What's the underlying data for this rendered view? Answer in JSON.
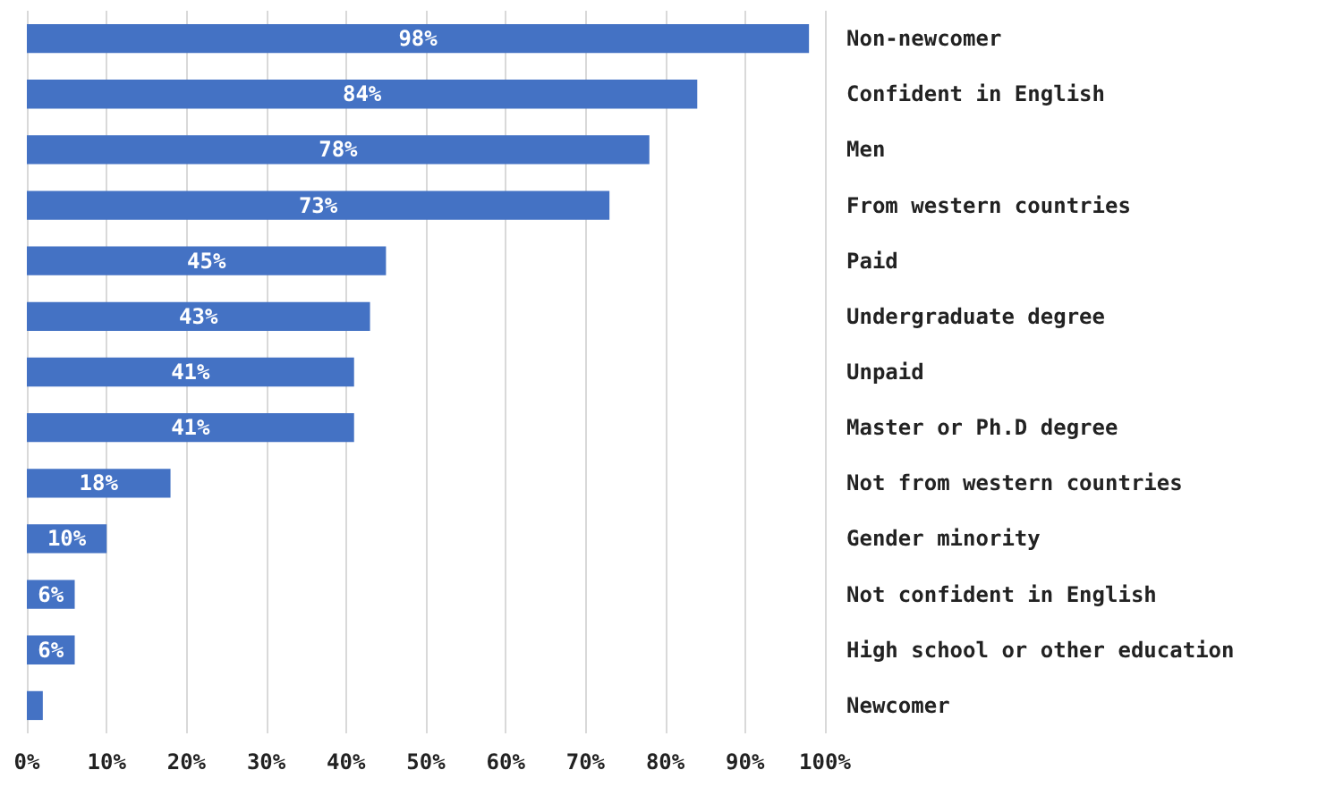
{
  "chart_data": {
    "type": "bar",
    "orientation": "horizontal",
    "categories": [
      "Non-newcomer",
      "Confident in English",
      "Men",
      "From western countries",
      "Paid",
      "Undergraduate degree",
      "Unpaid",
      "Master or Ph.D degree",
      "Not from western countries",
      "Gender minority",
      "Not confident in English",
      "High school or other education",
      "Newcomer"
    ],
    "values": [
      98,
      84,
      78,
      73,
      45,
      43,
      41,
      41,
      18,
      10,
      6,
      6,
      2
    ],
    "value_labels": [
      "98%",
      "84%",
      "78%",
      "73%",
      "45%",
      "43%",
      "41%",
      "41%",
      "18%",
      "10%",
      "6%",
      "6%",
      null
    ],
    "color": "#4472c4",
    "xlim": [
      0,
      100
    ],
    "xticks": [
      {
        "value": 0,
        "label": "0%"
      },
      {
        "value": 10,
        "label": "10%"
      },
      {
        "value": 20,
        "label": "20%"
      },
      {
        "value": 30,
        "label": "30%"
      },
      {
        "value": 40,
        "label": "40%"
      },
      {
        "value": 50,
        "label": "50%"
      },
      {
        "value": 60,
        "label": "60%"
      },
      {
        "value": 70,
        "label": "70%"
      },
      {
        "value": 80,
        "label": "80%"
      },
      {
        "value": 90,
        "label": "90%"
      },
      {
        "value": 100,
        "label": "100%"
      }
    ],
    "grid": "x"
  }
}
